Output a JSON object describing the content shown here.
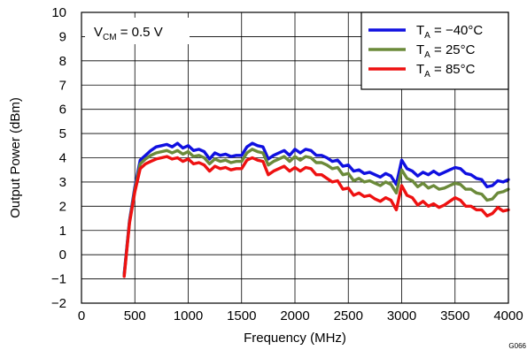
{
  "chart_data": {
    "type": "line",
    "xlabel": "Frequency (MHz)",
    "ylabel": "Output Power (dBm)",
    "xlim": [
      0,
      4000
    ],
    "ylim": [
      -2,
      10
    ],
    "xticks": [
      "0",
      "500",
      "1000",
      "1500",
      "2000",
      "2500",
      "3000",
      "3500",
      "4000"
    ],
    "yticks": [
      "−2",
      "−1",
      "0",
      "1",
      "2",
      "3",
      "4",
      "5",
      "6",
      "7",
      "8",
      "9",
      "10"
    ],
    "grid": true,
    "legend": "top-right",
    "annotation": {
      "main": "V",
      "sub": "CM",
      "rest": " = 0.5 V"
    },
    "figure_id": "G066",
    "series": [
      {
        "name": "T_A = −40°C",
        "label_main": "T",
        "label_sub": "A",
        "label_rest": " = −40°C",
        "color": "#1010e0",
        "x": [
          400,
          450,
          500,
          550,
          600,
          650,
          700,
          750,
          800,
          850,
          900,
          950,
          1000,
          1050,
          1100,
          1150,
          1200,
          1250,
          1300,
          1350,
          1400,
          1450,
          1500,
          1550,
          1600,
          1650,
          1700,
          1750,
          1800,
          1850,
          1900,
          1950,
          2000,
          2050,
          2100,
          2150,
          2200,
          2250,
          2300,
          2350,
          2400,
          2450,
          2500,
          2550,
          2600,
          2650,
          2700,
          2750,
          2800,
          2850,
          2900,
          2950,
          3000,
          3050,
          3100,
          3150,
          3200,
          3250,
          3300,
          3350,
          3400,
          3450,
          3500,
          3550,
          3600,
          3650,
          3700,
          3750,
          3800,
          3850,
          3900,
          3950,
          4000
        ],
        "y": [
          -0.8,
          1.4,
          2.8,
          3.9,
          4.1,
          4.3,
          4.45,
          4.5,
          4.55,
          4.45,
          4.6,
          4.4,
          4.5,
          4.3,
          4.35,
          4.25,
          3.95,
          4.2,
          4.1,
          4.15,
          4.05,
          4.1,
          4.1,
          4.45,
          4.6,
          4.5,
          4.45,
          3.95,
          4.1,
          4.2,
          4.3,
          4.1,
          4.35,
          4.2,
          4.35,
          4.3,
          4.1,
          4.1,
          4.0,
          3.85,
          3.9,
          3.65,
          3.7,
          3.45,
          3.5,
          3.35,
          3.4,
          3.3,
          3.2,
          3.35,
          3.25,
          2.9,
          3.9,
          3.55,
          3.45,
          3.25,
          3.4,
          3.3,
          3.45,
          3.3,
          3.4,
          3.5,
          3.6,
          3.55,
          3.35,
          3.3,
          3.15,
          3.1,
          2.8,
          2.85,
          3.05,
          3.0,
          3.1
        ]
      },
      {
        "name": "T_A = 25°C",
        "label_main": "T",
        "label_sub": "A",
        "label_rest": " = 25°C",
        "color": "#6b8a3a",
        "x": [
          400,
          450,
          500,
          550,
          600,
          650,
          700,
          750,
          800,
          850,
          900,
          950,
          1000,
          1050,
          1100,
          1150,
          1200,
          1250,
          1300,
          1350,
          1400,
          1450,
          1500,
          1550,
          1600,
          1650,
          1700,
          1750,
          1800,
          1850,
          1900,
          1950,
          2000,
          2050,
          2100,
          2150,
          2200,
          2250,
          2300,
          2350,
          2400,
          2450,
          2500,
          2550,
          2600,
          2650,
          2700,
          2750,
          2800,
          2850,
          2900,
          2950,
          3000,
          3050,
          3100,
          3150,
          3200,
          3250,
          3300,
          3350,
          3400,
          3450,
          3500,
          3550,
          3600,
          3650,
          3700,
          3750,
          3800,
          3850,
          3900,
          3950,
          4000
        ],
        "y": [
          -0.85,
          1.35,
          2.7,
          3.75,
          3.95,
          4.1,
          4.2,
          4.25,
          4.3,
          4.2,
          4.3,
          4.15,
          4.25,
          4.05,
          4.1,
          4.0,
          3.75,
          3.95,
          3.85,
          3.9,
          3.8,
          3.85,
          3.85,
          4.2,
          4.35,
          4.25,
          4.2,
          3.7,
          3.85,
          3.95,
          4.05,
          3.85,
          4.05,
          3.9,
          4.05,
          4.0,
          3.8,
          3.8,
          3.7,
          3.55,
          3.6,
          3.3,
          3.35,
          3.05,
          3.15,
          3.0,
          3.05,
          2.95,
          2.85,
          3.0,
          2.9,
          2.55,
          3.5,
          3.15,
          3.05,
          2.8,
          2.95,
          2.75,
          2.85,
          2.7,
          2.75,
          2.85,
          2.95,
          2.9,
          2.7,
          2.7,
          2.55,
          2.5,
          2.25,
          2.3,
          2.55,
          2.6,
          2.7
        ]
      },
      {
        "name": "T_A = 85°C",
        "label_main": "T",
        "label_sub": "A",
        "label_rest": " = 85°C",
        "color": "#ee1111",
        "x": [
          400,
          450,
          500,
          550,
          600,
          650,
          700,
          750,
          800,
          850,
          900,
          950,
          1000,
          1050,
          1100,
          1150,
          1200,
          1250,
          1300,
          1350,
          1400,
          1450,
          1500,
          1550,
          1600,
          1650,
          1700,
          1750,
          1800,
          1850,
          1900,
          1950,
          2000,
          2050,
          2100,
          2150,
          2200,
          2250,
          2300,
          2350,
          2400,
          2450,
          2500,
          2550,
          2600,
          2650,
          2700,
          2750,
          2800,
          2850,
          2900,
          2950,
          3000,
          3050,
          3100,
          3150,
          3200,
          3250,
          3300,
          3350,
          3400,
          3450,
          3500,
          3550,
          3600,
          3650,
          3700,
          3750,
          3800,
          3850,
          3900,
          3950,
          4000
        ],
        "y": [
          -0.9,
          1.3,
          2.6,
          3.55,
          3.75,
          3.85,
          3.95,
          4.0,
          4.05,
          3.95,
          4.0,
          3.85,
          3.95,
          3.75,
          3.8,
          3.7,
          3.45,
          3.65,
          3.55,
          3.6,
          3.5,
          3.55,
          3.55,
          3.9,
          4.0,
          3.9,
          3.85,
          3.3,
          3.45,
          3.55,
          3.65,
          3.45,
          3.6,
          3.45,
          3.6,
          3.55,
          3.3,
          3.3,
          3.15,
          3.0,
          3.05,
          2.7,
          2.75,
          2.45,
          2.55,
          2.4,
          2.45,
          2.3,
          2.2,
          2.35,
          2.25,
          1.85,
          2.85,
          2.45,
          2.35,
          2.05,
          2.2,
          2.0,
          2.1,
          1.95,
          2.05,
          2.2,
          2.35,
          2.25,
          2.0,
          2.0,
          1.85,
          1.85,
          1.6,
          1.7,
          1.95,
          1.8,
          1.85
        ]
      }
    ]
  }
}
